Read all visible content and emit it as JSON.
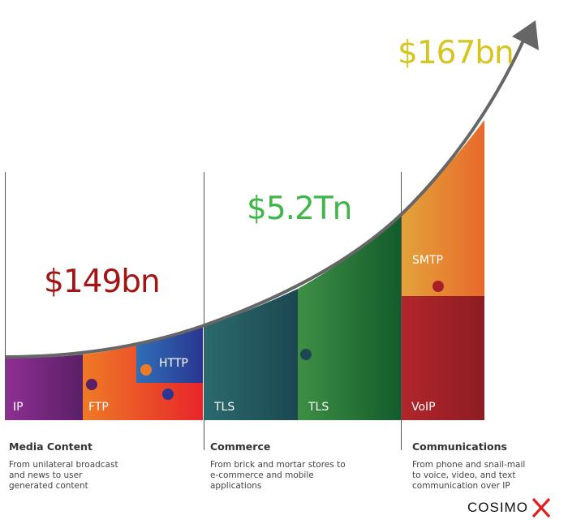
{
  "values": {
    "media": "$149bn",
    "commerce": "$5.2Tn",
    "communications": "$167bn"
  },
  "protocols": {
    "ip": "IP",
    "ftp": "FTP",
    "http": "HTTP",
    "tls_1": "TLS",
    "tls_2": "TLS",
    "smtp": "SMTP",
    "voip": "VoIP"
  },
  "sections": [
    {
      "title": "Media Content",
      "desc_lines": [
        "From unilateral broadcast",
        "and news to user",
        "generated content"
      ]
    },
    {
      "title": "Commerce",
      "desc_lines": [
        "From brick and mortar stores to",
        "e-commerce and mobile",
        "applications"
      ]
    },
    {
      "title": "Communications",
      "desc_lines": [
        "From phone and snail-mail",
        "to voice, video, and text",
        "communication over IP"
      ]
    }
  ],
  "brand": {
    "name": "COSIMO",
    "mark": "X"
  },
  "colors": {
    "media_value": "#a31515",
    "commerce_value": "#3fb54a",
    "communications_value": "#d6c521",
    "curve": "#666666",
    "brand_x": "#e02020"
  }
}
